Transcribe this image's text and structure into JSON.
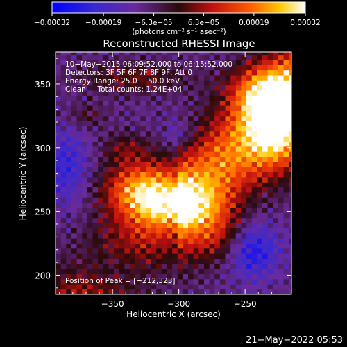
{
  "chart_data": {
    "type": "heatmap",
    "title": "Reconstructed RHESSI Image",
    "xlabel": "Heliocentric X (arcsec)",
    "ylabel": "Heliocentric Y (arcsec)",
    "xlim": [
      -393,
      -215
    ],
    "ylim": [
      185,
      375
    ],
    "x_ticks": [
      -350,
      -300,
      -250
    ],
    "x_tick_labels": [
      "−350",
      "−300",
      "−250"
    ],
    "y_ticks": [
      200,
      250,
      300,
      350
    ],
    "y_tick_labels": [
      "200",
      "250",
      "300",
      "350"
    ],
    "colorbar": {
      "range": [
        -0.00032,
        0.00032
      ],
      "ticks": [
        -0.00032,
        -0.00019,
        -6.3e-05,
        6.3e-05,
        0.00019,
        0.00032
      ],
      "tick_labels": [
        "−0.00032",
        "−0.00019",
        "−6.3e−05",
        "6.3e−05",
        "0.00019",
        "0.00032"
      ],
      "unit": "(photons cm⁻² s⁻¹ asec⁻²)"
    },
    "annotations": [
      "10−May−2015 06:09:52.000 to 06:15:52.000",
      "Detectors: 3F 5F 6F 7F 8F 9F, Att 0",
      "Energy Range: 25.0 − 50.0 keV",
      "Clean     Total counts: 1.24E+04"
    ],
    "peak_label": "Position of Peak = [−212,323]",
    "peak": [
      -212,
      323
    ],
    "colormap": [
      "#0000ff",
      "#6a2b9a",
      "#2a0a0a",
      "#c01010",
      "#ff5a00",
      "#ffc800",
      "#ffffff"
    ]
  },
  "footer": {
    "timestamp": "21−May−2022 05:53"
  }
}
